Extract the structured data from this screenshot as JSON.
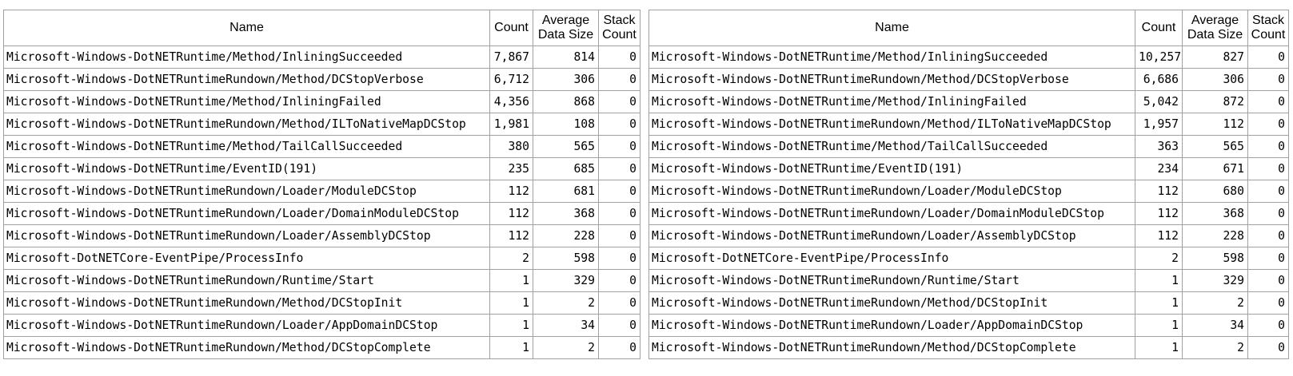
{
  "headers": {
    "name": "Name",
    "count": "Count",
    "avg_data_size": "Average Data Size",
    "stack_count": "Stack Count"
  },
  "left_table": {
    "rows": [
      {
        "name": "Microsoft-Windows-DotNETRuntime/Method/InliningSucceeded",
        "count": "7,867",
        "avg": "814",
        "stack": "0"
      },
      {
        "name": "Microsoft-Windows-DotNETRuntimeRundown/Method/DCStopVerbose",
        "count": "6,712",
        "avg": "306",
        "stack": "0"
      },
      {
        "name": "Microsoft-Windows-DotNETRuntime/Method/InliningFailed",
        "count": "4,356",
        "avg": "868",
        "stack": "0"
      },
      {
        "name": "Microsoft-Windows-DotNETRuntimeRundown/Method/ILToNativeMapDCStop",
        "count": "1,981",
        "avg": "108",
        "stack": "0"
      },
      {
        "name": "Microsoft-Windows-DotNETRuntime/Method/TailCallSucceeded",
        "count": "380",
        "avg": "565",
        "stack": "0"
      },
      {
        "name": "Microsoft-Windows-DotNETRuntime/EventID(191)",
        "count": "235",
        "avg": "685",
        "stack": "0"
      },
      {
        "name": "Microsoft-Windows-DotNETRuntimeRundown/Loader/ModuleDCStop",
        "count": "112",
        "avg": "681",
        "stack": "0"
      },
      {
        "name": "Microsoft-Windows-DotNETRuntimeRundown/Loader/DomainModuleDCStop",
        "count": "112",
        "avg": "368",
        "stack": "0"
      },
      {
        "name": "Microsoft-Windows-DotNETRuntimeRundown/Loader/AssemblyDCStop",
        "count": "112",
        "avg": "228",
        "stack": "0"
      },
      {
        "name": "Microsoft-DotNETCore-EventPipe/ProcessInfo",
        "count": "2",
        "avg": "598",
        "stack": "0"
      },
      {
        "name": "Microsoft-Windows-DotNETRuntimeRundown/Runtime/Start",
        "count": "1",
        "avg": "329",
        "stack": "0"
      },
      {
        "name": "Microsoft-Windows-DotNETRuntimeRundown/Method/DCStopInit",
        "count": "1",
        "avg": "2",
        "stack": "0"
      },
      {
        "name": "Microsoft-Windows-DotNETRuntimeRundown/Loader/AppDomainDCStop",
        "count": "1",
        "avg": "34",
        "stack": "0"
      },
      {
        "name": "Microsoft-Windows-DotNETRuntimeRundown/Method/DCStopComplete",
        "count": "1",
        "avg": "2",
        "stack": "0"
      }
    ]
  },
  "right_table": {
    "rows": [
      {
        "name": "Microsoft-Windows-DotNETRuntime/Method/InliningSucceeded",
        "count": "10,257",
        "avg": "827",
        "stack": "0"
      },
      {
        "name": "Microsoft-Windows-DotNETRuntimeRundown/Method/DCStopVerbose",
        "count": "6,686",
        "avg": "306",
        "stack": "0"
      },
      {
        "name": "Microsoft-Windows-DotNETRuntime/Method/InliningFailed",
        "count": "5,042",
        "avg": "872",
        "stack": "0"
      },
      {
        "name": "Microsoft-Windows-DotNETRuntimeRundown/Method/ILToNativeMapDCStop",
        "count": "1,957",
        "avg": "112",
        "stack": "0"
      },
      {
        "name": "Microsoft-Windows-DotNETRuntime/Method/TailCallSucceeded",
        "count": "363",
        "avg": "565",
        "stack": "0"
      },
      {
        "name": "Microsoft-Windows-DotNETRuntime/EventID(191)",
        "count": "234",
        "avg": "671",
        "stack": "0"
      },
      {
        "name": "Microsoft-Windows-DotNETRuntimeRundown/Loader/ModuleDCStop",
        "count": "112",
        "avg": "680",
        "stack": "0"
      },
      {
        "name": "Microsoft-Windows-DotNETRuntimeRundown/Loader/DomainModuleDCStop",
        "count": "112",
        "avg": "368",
        "stack": "0"
      },
      {
        "name": "Microsoft-Windows-DotNETRuntimeRundown/Loader/AssemblyDCStop",
        "count": "112",
        "avg": "228",
        "stack": "0"
      },
      {
        "name": "Microsoft-DotNETCore-EventPipe/ProcessInfo",
        "count": "2",
        "avg": "598",
        "stack": "0"
      },
      {
        "name": "Microsoft-Windows-DotNETRuntimeRundown/Runtime/Start",
        "count": "1",
        "avg": "329",
        "stack": "0"
      },
      {
        "name": "Microsoft-Windows-DotNETRuntimeRundown/Method/DCStopInit",
        "count": "1",
        "avg": "2",
        "stack": "0"
      },
      {
        "name": "Microsoft-Windows-DotNETRuntimeRundown/Loader/AppDomainDCStop",
        "count": "1",
        "avg": "34",
        "stack": "0"
      },
      {
        "name": "Microsoft-Windows-DotNETRuntimeRundown/Method/DCStopComplete",
        "count": "1",
        "avg": "2",
        "stack": "0"
      }
    ]
  }
}
